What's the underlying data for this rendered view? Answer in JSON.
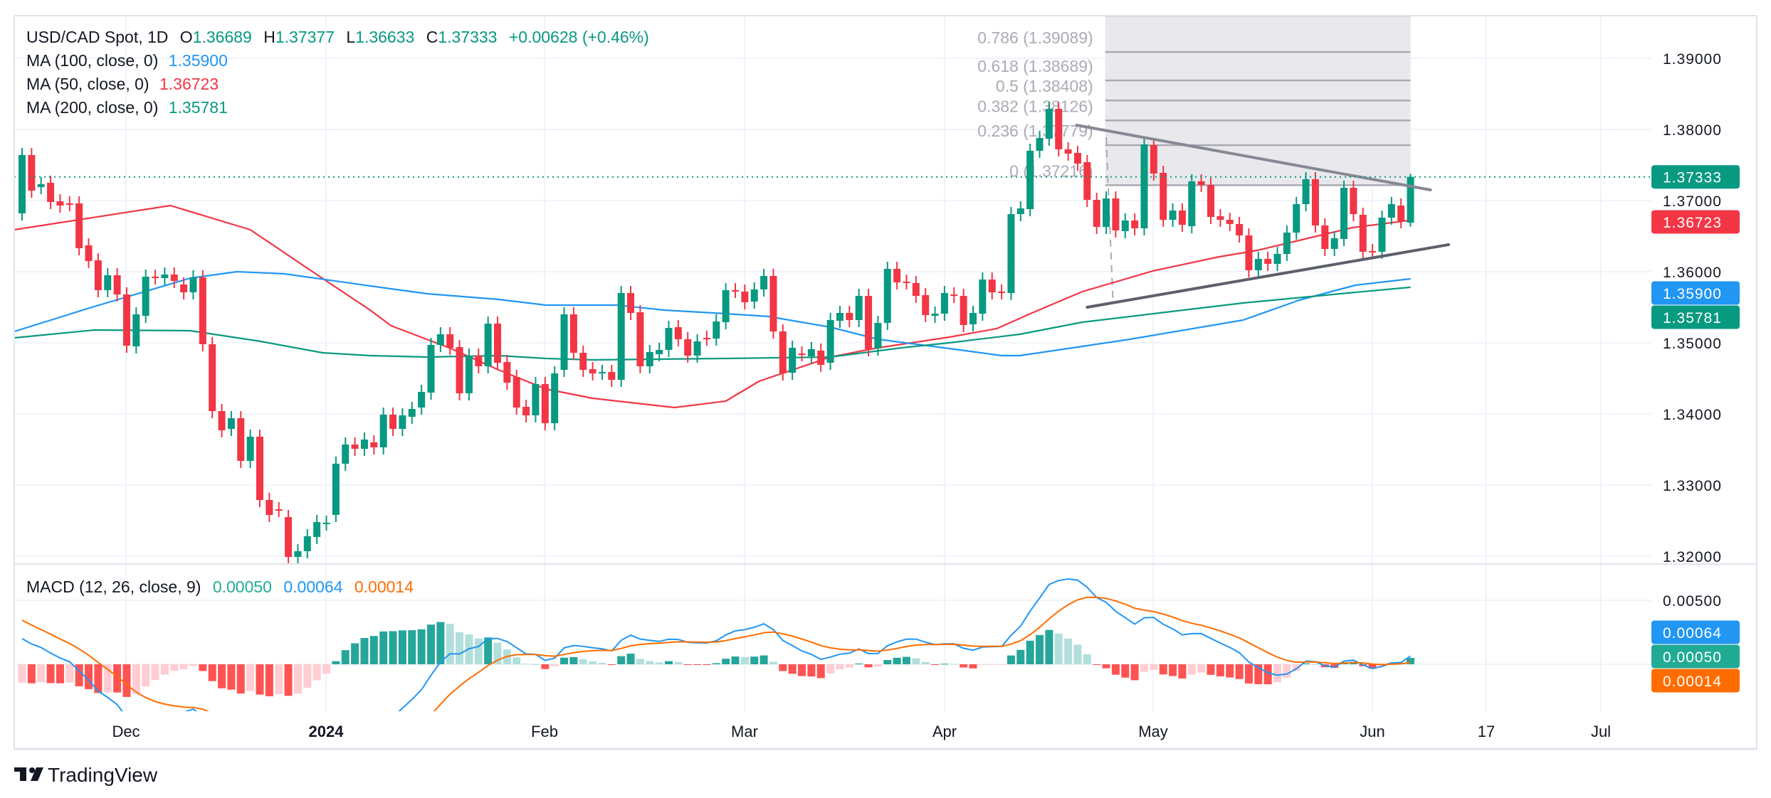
{
  "header": {
    "symbol": "USD/CAD Spot, 1D",
    "o_label": "O",
    "open": "1.36689",
    "h_label": "H",
    "high": "1.37377",
    "l_label": "L",
    "low": "1.36633",
    "c_label": "C",
    "close": "1.37333",
    "change": "+0.00628 (+0.46%)"
  },
  "indicators": [
    {
      "label": "MA (100, close, 0)",
      "value": "1.35900",
      "color": "#2196f3"
    },
    {
      "label": "MA (50, close, 0)",
      "value": "1.36723",
      "color": "#f23645"
    },
    {
      "label": "MA (200, close, 0)",
      "value": "1.35781",
      "color": "#089981"
    }
  ],
  "macd_legend": {
    "label": "MACD (12, 26, close, 9)",
    "histogram": "0.00050",
    "histogram_color": "#22ab94",
    "macd": "0.00064",
    "macd_color": "#2196f3",
    "signal": "0.00014",
    "signal_color": "#ff6d00"
  },
  "price_axis": [
    {
      "label": "1.39000",
      "value": 1.39
    },
    {
      "label": "1.38000",
      "value": 1.38
    },
    {
      "label": "1.37000",
      "value": 1.37
    },
    {
      "label": "1.36000",
      "value": 1.36
    },
    {
      "label": "1.35000",
      "value": 1.35
    },
    {
      "label": "1.34000",
      "value": 1.34
    },
    {
      "label": "1.33000",
      "value": 1.33
    },
    {
      "label": "1.32000",
      "value": 1.32
    }
  ],
  "macd_axis": [
    {
      "label": "0.00500",
      "value": 0.005
    }
  ],
  "price_tags": [
    {
      "label": "1.37333",
      "value": 1.37333,
      "color": "#089981"
    },
    {
      "label": "1.36723",
      "value": 1.36723,
      "color": "#f23645"
    },
    {
      "label": "1.35900",
      "value": 1.359,
      "color": "#2196f3"
    },
    {
      "label": "1.35781",
      "value": 1.35781,
      "color": "#089981"
    }
  ],
  "macd_tags": [
    {
      "label": "0.00064",
      "color": "#2196f3"
    },
    {
      "label": "0.00050",
      "color": "#22ab94"
    },
    {
      "label": "0.00014",
      "color": "#ff6d00"
    }
  ],
  "time_axis": [
    {
      "label": "Dec",
      "bold": false
    },
    {
      "label": "2024",
      "bold": true
    },
    {
      "label": "Feb",
      "bold": false
    },
    {
      "label": "Mar",
      "bold": false
    },
    {
      "label": "Apr",
      "bold": false
    },
    {
      "label": "May",
      "bold": false
    },
    {
      "label": "Jun",
      "bold": false
    },
    {
      "label": "17",
      "bold": false
    },
    {
      "label": "Jul",
      "bold": false
    }
  ],
  "brand": "TradingView",
  "colors": {
    "up": "#089981",
    "down": "#f23645",
    "grid": "#f0f3fa",
    "trendline": "#787b86"
  },
  "chart_data": {
    "type": "candlestick",
    "title": "USD/CAD Spot, 1D",
    "ylim": [
      1.3185,
      1.3965
    ],
    "last_bar": {
      "open": 1.36689,
      "high": 1.37377,
      "low": 1.36633,
      "close": 1.37333
    },
    "candles_oc": [
      [
        1.3682,
        1.3764
      ],
      [
        1.3764,
        1.3714
      ],
      [
        1.3719,
        1.3723
      ],
      [
        1.3725,
        1.3698
      ],
      [
        1.3699,
        1.3693
      ],
      [
        1.3696,
        1.3695
      ],
      [
        1.3696,
        1.3633
      ],
      [
        1.3637,
        1.3615
      ],
      [
        1.3616,
        1.3574
      ],
      [
        1.3574,
        1.3595
      ],
      [
        1.3595,
        1.3568
      ],
      [
        1.3568,
        1.3496
      ],
      [
        1.3495,
        1.354
      ],
      [
        1.3538,
        1.3593
      ],
      [
        1.3593,
        1.3592
      ],
      [
        1.3591,
        1.3596
      ],
      [
        1.3596,
        1.3587
      ],
      [
        1.3582,
        1.3571
      ],
      [
        1.3571,
        1.3592
      ],
      [
        1.3592,
        1.3498
      ],
      [
        1.3498,
        1.3404
      ],
      [
        1.3404,
        1.3377
      ],
      [
        1.3379,
        1.3394
      ],
      [
        1.3394,
        1.3334
      ],
      [
        1.3334,
        1.3368
      ],
      [
        1.3368,
        1.3279
      ],
      [
        1.3279,
        1.3258
      ],
      [
        1.3266,
        1.3265
      ],
      [
        1.3255,
        1.3199
      ],
      [
        1.3199,
        1.3207
      ],
      [
        1.3207,
        1.3228
      ],
      [
        1.3227,
        1.3248
      ],
      [
        1.3246,
        1.3247
      ],
      [
        1.3258,
        1.333
      ],
      [
        1.333,
        1.3357
      ],
      [
        1.3357,
        1.3351
      ],
      [
        1.3351,
        1.3364
      ],
      [
        1.336,
        1.3353
      ],
      [
        1.3353,
        1.3399
      ],
      [
        1.3399,
        1.3379
      ],
      [
        1.3379,
        1.3398
      ],
      [
        1.3396,
        1.3407
      ],
      [
        1.3409,
        1.3431
      ],
      [
        1.343,
        1.3497
      ],
      [
        1.3497,
        1.3512
      ],
      [
        1.3512,
        1.3493
      ],
      [
        1.3494,
        1.3429
      ],
      [
        1.3429,
        1.3482
      ],
      [
        1.3482,
        1.3467
      ],
      [
        1.3467,
        1.3527
      ],
      [
        1.3527,
        1.3472
      ],
      [
        1.3473,
        1.3444
      ],
      [
        1.3452,
        1.3409
      ],
      [
        1.341,
        1.3398
      ],
      [
        1.3398,
        1.3442
      ],
      [
        1.3442,
        1.3387
      ],
      [
        1.3387,
        1.3457
      ],
      [
        1.3462,
        1.354
      ],
      [
        1.354,
        1.3486
      ],
      [
        1.3486,
        1.3462
      ],
      [
        1.3463,
        1.3457
      ],
      [
        1.3458,
        1.3459
      ],
      [
        1.3459,
        1.3448
      ],
      [
        1.3448,
        1.357
      ],
      [
        1.357,
        1.3542
      ],
      [
        1.3543,
        1.3467
      ],
      [
        1.3467,
        1.3487
      ],
      [
        1.3484,
        1.349
      ],
      [
        1.349,
        1.3521
      ],
      [
        1.3522,
        1.3505
      ],
      [
        1.3505,
        1.3482
      ],
      [
        1.3482,
        1.3502
      ],
      [
        1.3507,
        1.3506
      ],
      [
        1.3506,
        1.353
      ],
      [
        1.3529,
        1.3574
      ],
      [
        1.3574,
        1.3573
      ],
      [
        1.3572,
        1.3557
      ],
      [
        1.3558,
        1.3575
      ],
      [
        1.3575,
        1.3594
      ],
      [
        1.3594,
        1.3516
      ],
      [
        1.3516,
        1.3457
      ],
      [
        1.3458,
        1.3493
      ],
      [
        1.3485,
        1.3484
      ],
      [
        1.3481,
        1.3491
      ],
      [
        1.3489,
        1.3469
      ],
      [
        1.3472,
        1.3532
      ],
      [
        1.3531,
        1.3542
      ],
      [
        1.3542,
        1.3532
      ],
      [
        1.3532,
        1.3566
      ],
      [
        1.3566,
        1.3491
      ],
      [
        1.3492,
        1.3528
      ],
      [
        1.3528,
        1.3604
      ],
      [
        1.3604,
        1.3585
      ],
      [
        1.3586,
        1.3585
      ],
      [
        1.3584,
        1.3566
      ],
      [
        1.3567,
        1.3539
      ],
      [
        1.3538,
        1.3541
      ],
      [
        1.3541,
        1.357
      ],
      [
        1.3568,
        1.3566
      ],
      [
        1.3566,
        1.3525
      ],
      [
        1.3526,
        1.3542
      ],
      [
        1.3541,
        1.3589
      ],
      [
        1.3589,
        1.3571
      ],
      [
        1.3572,
        1.3571
      ],
      [
        1.357,
        1.3681
      ],
      [
        1.3681,
        1.3689
      ],
      [
        1.3688,
        1.377
      ],
      [
        1.377,
        1.3788
      ],
      [
        1.3787,
        1.3829
      ],
      [
        1.3829,
        1.3772
      ],
      [
        1.3772,
        1.3766
      ],
      [
        1.3767,
        1.3752
      ],
      [
        1.3754,
        1.3701
      ],
      [
        1.3701,
        1.3663
      ],
      [
        1.3663,
        1.3703
      ],
      [
        1.3703,
        1.3658
      ],
      [
        1.3657,
        1.3672
      ],
      [
        1.3672,
        1.3661
      ],
      [
        1.3661,
        1.3779
      ],
      [
        1.3778,
        1.3738
      ],
      [
        1.3739,
        1.3673
      ],
      [
        1.3673,
        1.3686
      ],
      [
        1.3686,
        1.3666
      ],
      [
        1.3664,
        1.3727
      ],
      [
        1.3727,
        1.3722
      ],
      [
        1.3722,
        1.3677
      ],
      [
        1.3678,
        1.3673
      ],
      [
        1.3673,
        1.3667
      ],
      [
        1.3667,
        1.3651
      ],
      [
        1.3651,
        1.3602
      ],
      [
        1.3602,
        1.3618
      ],
      [
        1.3618,
        1.3611
      ],
      [
        1.3611,
        1.3625
      ],
      [
        1.3625,
        1.3655
      ],
      [
        1.3655,
        1.3695
      ],
      [
        1.3695,
        1.373
      ],
      [
        1.373,
        1.3665
      ],
      [
        1.3665,
        1.3632
      ],
      [
        1.3632,
        1.3647
      ],
      [
        1.3646,
        1.3718
      ],
      [
        1.3718,
        1.3681
      ],
      [
        1.368,
        1.3628
      ],
      [
        1.3629,
        1.3628
      ],
      [
        1.3628,
        1.3676
      ],
      [
        1.3676,
        1.3695
      ],
      [
        1.3693,
        1.3671
      ],
      [
        1.36689,
        1.37333
      ]
    ],
    "moving_averages": [
      {
        "name": "MA 50",
        "color": "#f23645",
        "points": [
          [
            -0.8,
            1.3659
          ],
          [
            15.6,
            1.3693
          ],
          [
            24,
            1.3659
          ],
          [
            31.1,
            1.3595
          ],
          [
            36.6,
            1.3546
          ],
          [
            38.8,
            1.3524
          ],
          [
            45.1,
            1.3492
          ],
          [
            50.1,
            1.3462
          ],
          [
            55.1,
            1.3435
          ],
          [
            60,
            1.3422
          ],
          [
            68.6,
            1.3409
          ],
          [
            74,
            1.3418
          ],
          [
            77.5,
            1.3446
          ],
          [
            85,
            1.348
          ],
          [
            90,
            1.3493
          ],
          [
            97.5,
            1.3508
          ],
          [
            102.5,
            1.352
          ],
          [
            106.2,
            1.3542
          ],
          [
            111.5,
            1.3572
          ],
          [
            118.9,
            1.3601
          ],
          [
            125.9,
            1.3621
          ],
          [
            129.9,
            1.363
          ],
          [
            134.9,
            1.3646
          ],
          [
            139.9,
            1.3662
          ],
          [
            146,
            1.36723
          ]
        ]
      },
      {
        "name": "MA 100",
        "color": "#2196f3",
        "points": [
          [
            -0.8,
            1.3516
          ],
          [
            7.6,
            1.3551
          ],
          [
            17.7,
            1.3591
          ],
          [
            22.6,
            1.36
          ],
          [
            27.6,
            1.3597
          ],
          [
            36.6,
            1.358
          ],
          [
            42.6,
            1.3569
          ],
          [
            50.1,
            1.3561
          ],
          [
            55.1,
            1.3553
          ],
          [
            62.6,
            1.3553
          ],
          [
            67.5,
            1.3546
          ],
          [
            74,
            1.3541
          ],
          [
            78.5,
            1.3537
          ],
          [
            85,
            1.3522
          ],
          [
            90,
            1.3505
          ],
          [
            97.5,
            1.3492
          ],
          [
            103,
            1.3482
          ],
          [
            104.9,
            1.3482
          ],
          [
            111.5,
            1.3495
          ],
          [
            116.5,
            1.3505
          ],
          [
            128.4,
            1.3532
          ],
          [
            134.3,
            1.356
          ],
          [
            140.2,
            1.3581
          ],
          [
            146,
            1.359
          ]
        ]
      },
      {
        "name": "MA 200",
        "color": "#089981",
        "points": [
          [
            -0.8,
            1.3507
          ],
          [
            7.6,
            1.3518
          ],
          [
            17.7,
            1.3517
          ],
          [
            25.1,
            1.3502
          ],
          [
            31.6,
            1.3486
          ],
          [
            36.6,
            1.3482
          ],
          [
            42.6,
            1.348
          ],
          [
            50.1,
            1.3482
          ],
          [
            55.1,
            1.3478
          ],
          [
            60,
            1.3476
          ],
          [
            74,
            1.3478
          ],
          [
            85,
            1.348
          ],
          [
            92.5,
            1.3493
          ],
          [
            97.5,
            1.35
          ],
          [
            104.9,
            1.3512
          ],
          [
            111.5,
            1.3529
          ],
          [
            128.4,
            1.3556
          ],
          [
            140.2,
            1.3571
          ],
          [
            146,
            1.35781
          ]
        ]
      }
    ],
    "trendlines": [
      {
        "name": "upper-trendline",
        "from": [
          110.9,
          1.3806
        ],
        "to": [
          148.1,
          1.3715
        ],
        "color": "#868993"
      },
      {
        "name": "lower-trendline",
        "from": [
          112,
          1.355
        ],
        "to": [
          150,
          1.3638
        ],
        "color": "#5d606b"
      }
    ],
    "fibonacci": {
      "start_index": 113.9,
      "end_index": 146,
      "levels": [
        {
          "level": 1,
          "price": 1.39599,
          "label": null
        },
        {
          "level": 0.786,
          "price": 1.39089,
          "label": "0.786 (1.39089)"
        },
        {
          "level": 0.618,
          "price": 1.38689,
          "label": "0.618 (1.38689)"
        },
        {
          "level": 0.5,
          "price": 1.38408,
          "label": "0.5 (1.38408)"
        },
        {
          "level": 0.382,
          "price": 1.38126,
          "label": "0.382 (1.38126)"
        },
        {
          "level": 0.236,
          "price": 1.37779,
          "label": "0.236 (1.37779)"
        },
        {
          "level": 0,
          "price": 1.37216,
          "label": "0 (1.37216)"
        }
      ],
      "anchor_line": {
        "from": [
          114,
          1.3789
        ],
        "to": [
          114.7,
          1.3562
        ]
      }
    },
    "macd": {
      "fast": 12,
      "slow": 26,
      "signal": 9,
      "seed_ema_fast": 1.3745,
      "seed_ema_slow": 1.3725,
      "seed_signal": 0.0038,
      "colors": {
        "macd": "#2196f3",
        "signal": "#ff6d00",
        "hist_up_strong": "#26a69a",
        "hist_up_weak": "#b2dfdb",
        "hist_down_strong": "#ff5252",
        "hist_down_weak": "#ffcdd2"
      }
    }
  }
}
